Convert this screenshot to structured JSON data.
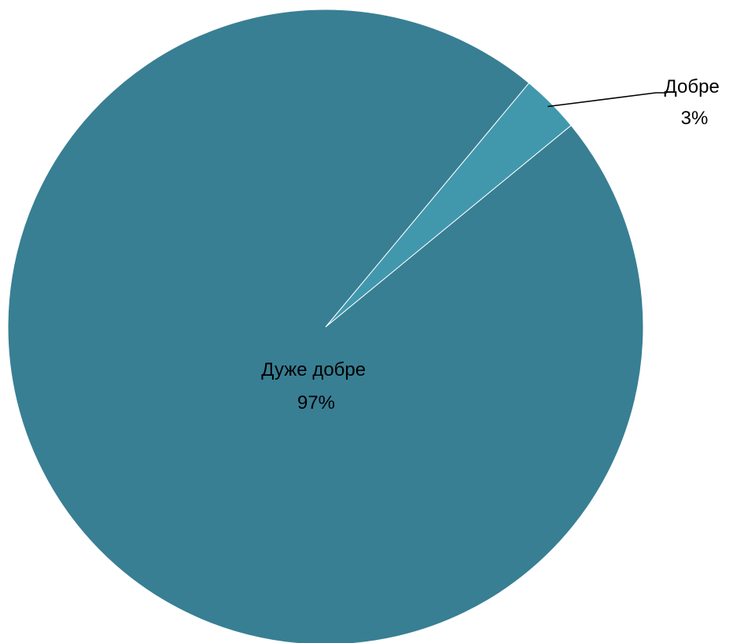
{
  "chart_data": {
    "type": "pie",
    "title": "",
    "slices": [
      {
        "name": "Дуже добре",
        "value": 97,
        "label": "97%",
        "color": "#387F94"
      },
      {
        "name": "Добре",
        "value": 3,
        "label": "3%",
        "color": "#4198AD"
      }
    ],
    "start_angle": "close to 12 o'clock, large slice first, clockwise from the small slice",
    "legend": "none",
    "data_labels": "category name and percentage",
    "leader_line_color": "#000000"
  }
}
